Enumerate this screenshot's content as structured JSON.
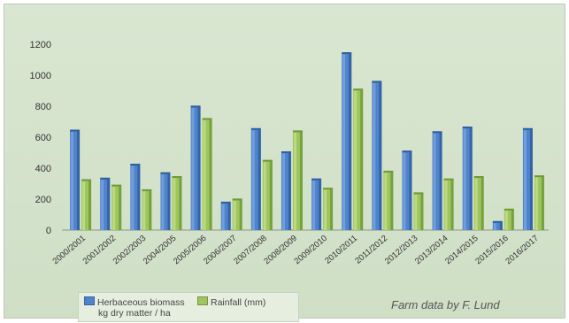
{
  "chart_data": {
    "type": "bar",
    "categories": [
      "2000/2001",
      "2001/2002",
      "2002/2003",
      "2004/2005",
      "2005/2006",
      "2006/2007",
      "2007/2008",
      "2008/2009",
      "2009/2010",
      "2010/2011",
      "2011/2012",
      "2012/2013",
      "2013/2014",
      "2014/2015",
      "2015/2016",
      "2016/2017"
    ],
    "series": [
      {
        "name": "Herbaceous biomass kg dry matter / ha",
        "name_lines": [
          "Herbaceous biomass",
          "kg dry matter / ha"
        ],
        "color": "#4f83cc",
        "values": [
          640,
          330,
          420,
          365,
          795,
          175,
          650,
          500,
          325,
          1140,
          955,
          505,
          630,
          660,
          50,
          650
        ]
      },
      {
        "name": "Rainfall (mm)",
        "color": "#9fc55f",
        "values": [
          320,
          285,
          255,
          340,
          715,
          195,
          445,
          635,
          265,
          905,
          375,
          235,
          325,
          340,
          130,
          345
        ]
      }
    ],
    "ylim": [
      0,
      1200
    ],
    "yticks": [
      0,
      200,
      400,
      600,
      800,
      1000,
      1200
    ],
    "grid": false,
    "legend": "bottom-left",
    "annotation": "Farm data by F. Lund"
  }
}
